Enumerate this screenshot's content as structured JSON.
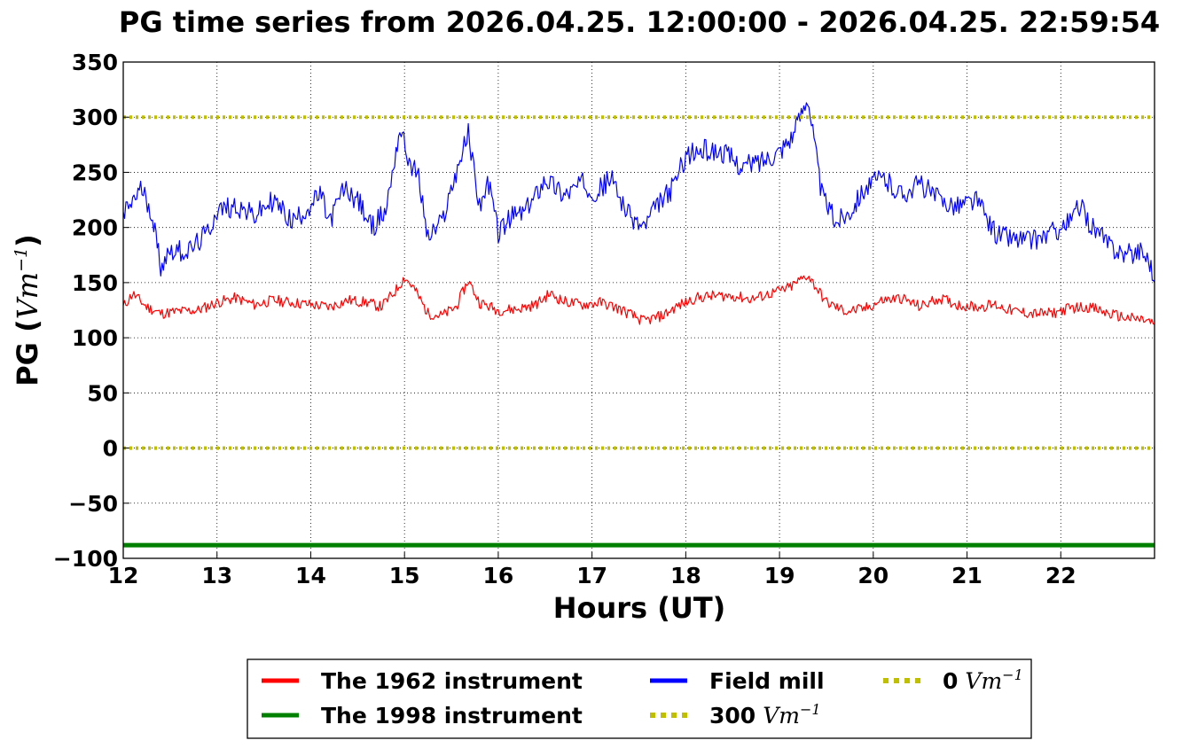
{
  "chart_data": {
    "type": "line",
    "title": "PG time series from 2026.04.25. 12:00:00 - 2026.04.25. 22:59:54",
    "xlabel": "Hours (UT)",
    "ylabel_main": "PG (",
    "ylabel_unit": "Vm",
    "ylabel_sup": "−1",
    "ylabel_close": ")",
    "xlim": [
      12,
      23
    ],
    "ylim": [
      -100,
      350
    ],
    "xticks": [
      "12",
      "13",
      "14",
      "15",
      "16",
      "17",
      "18",
      "19",
      "20",
      "21",
      "22"
    ],
    "yticks": [
      "350",
      "300",
      "250",
      "200",
      "150",
      "100",
      "50",
      "0",
      "−50",
      "−100"
    ],
    "grid": true,
    "legend_position": "bottom",
    "series": [
      {
        "name": "The 1962 instrument",
        "color": "#ff0000",
        "x": [
          12.0,
          12.1,
          12.25,
          12.4,
          12.6,
          12.8,
          13.0,
          13.2,
          13.4,
          13.6,
          13.8,
          14.0,
          14.2,
          14.4,
          14.6,
          14.75,
          14.9,
          15.0,
          15.1,
          15.25,
          15.4,
          15.55,
          15.68,
          15.8,
          16.0,
          16.2,
          16.4,
          16.55,
          16.7,
          16.9,
          17.1,
          17.3,
          17.55,
          17.75,
          17.9,
          18.1,
          18.3,
          18.5,
          18.7,
          18.9,
          19.1,
          19.3,
          19.5,
          19.7,
          19.9,
          20.1,
          20.3,
          20.5,
          20.7,
          20.9,
          21.1,
          21.3,
          21.5,
          21.7,
          21.9,
          22.1,
          22.3,
          22.5,
          22.7,
          22.9,
          23.0
        ],
        "y": [
          128,
          140,
          128,
          122,
          124,
          125,
          132,
          136,
          130,
          134,
          132,
          130,
          128,
          134,
          132,
          128,
          142,
          155,
          145,
          122,
          120,
          128,
          152,
          132,
          125,
          126,
          130,
          140,
          133,
          130,
          132,
          126,
          115,
          120,
          128,
          136,
          138,
          138,
          135,
          140,
          145,
          157,
          132,
          124,
          126,
          134,
          136,
          128,
          136,
          130,
          128,
          130,
          124,
          122,
          122,
          127,
          128,
          122,
          118,
          116,
          112
        ]
      },
      {
        "name": "The 1998 instrument",
        "color": "#008000",
        "x": [
          12,
          23
        ],
        "y": [
          -88,
          -88
        ]
      },
      {
        "name": "Field mill",
        "color": "#0000ff",
        "x": [
          12.0,
          12.1,
          12.2,
          12.3,
          12.35,
          12.4,
          12.5,
          12.7,
          12.9,
          13.0,
          13.2,
          13.4,
          13.6,
          13.8,
          14.0,
          14.1,
          14.2,
          14.35,
          14.5,
          14.65,
          14.8,
          14.95,
          15.05,
          15.15,
          15.25,
          15.4,
          15.55,
          15.68,
          15.8,
          15.9,
          16.0,
          16.15,
          16.3,
          16.5,
          16.7,
          16.9,
          17.05,
          17.2,
          17.4,
          17.55,
          17.7,
          17.85,
          18.0,
          18.2,
          18.4,
          18.6,
          18.8,
          19.0,
          19.15,
          19.3,
          19.45,
          19.6,
          19.75,
          19.9,
          20.1,
          20.3,
          20.5,
          20.7,
          20.9,
          21.1,
          21.3,
          21.5,
          21.7,
          21.9,
          22.1,
          22.2,
          22.3,
          22.5,
          22.7,
          22.85,
          22.95,
          23.0
        ],
        "y": [
          210,
          225,
          235,
          215,
          190,
          165,
          180,
          178,
          195,
          215,
          220,
          210,
          225,
          205,
          220,
          230,
          205,
          235,
          225,
          200,
          215,
          290,
          260,
          245,
          190,
          205,
          250,
          285,
          220,
          240,
          195,
          210,
          215,
          245,
          230,
          240,
          232,
          245,
          210,
          200,
          220,
          235,
          265,
          270,
          268,
          255,
          260,
          270,
          285,
          320,
          230,
          205,
          215,
          235,
          245,
          230,
          240,
          225,
          220,
          225,
          195,
          190,
          188,
          195,
          205,
          220,
          205,
          185,
          175,
          180,
          170,
          150
        ]
      },
      {
        "name": "300 Vm⁻¹",
        "label_value": "300",
        "color": "#bfbf00",
        "x": [
          12,
          23
        ],
        "y": [
          300,
          300
        ]
      },
      {
        "name": "0 Vm⁻¹",
        "label_value": "0",
        "color": "#bfbf00",
        "x": [
          12,
          23
        ],
        "y": [
          0,
          0
        ]
      }
    ],
    "legend": [
      {
        "value": "The 1962 instrument",
        "unit": "",
        "sup": "",
        "color": "#ff0000",
        "dashed": false
      },
      {
        "value": "The 1998 instrument",
        "unit": "",
        "sup": "",
        "color": "#008000",
        "dashed": false
      },
      {
        "value": "Field mill",
        "unit": "",
        "sup": "",
        "color": "#0000ff",
        "dashed": false
      },
      {
        "value": "300",
        "unit": "Vm",
        "sup": "−1",
        "color": "#bfbf00",
        "dashed": true
      },
      {
        "value": "0",
        "unit": "Vm",
        "sup": "−1",
        "color": "#bfbf00",
        "dashed": true
      }
    ]
  }
}
